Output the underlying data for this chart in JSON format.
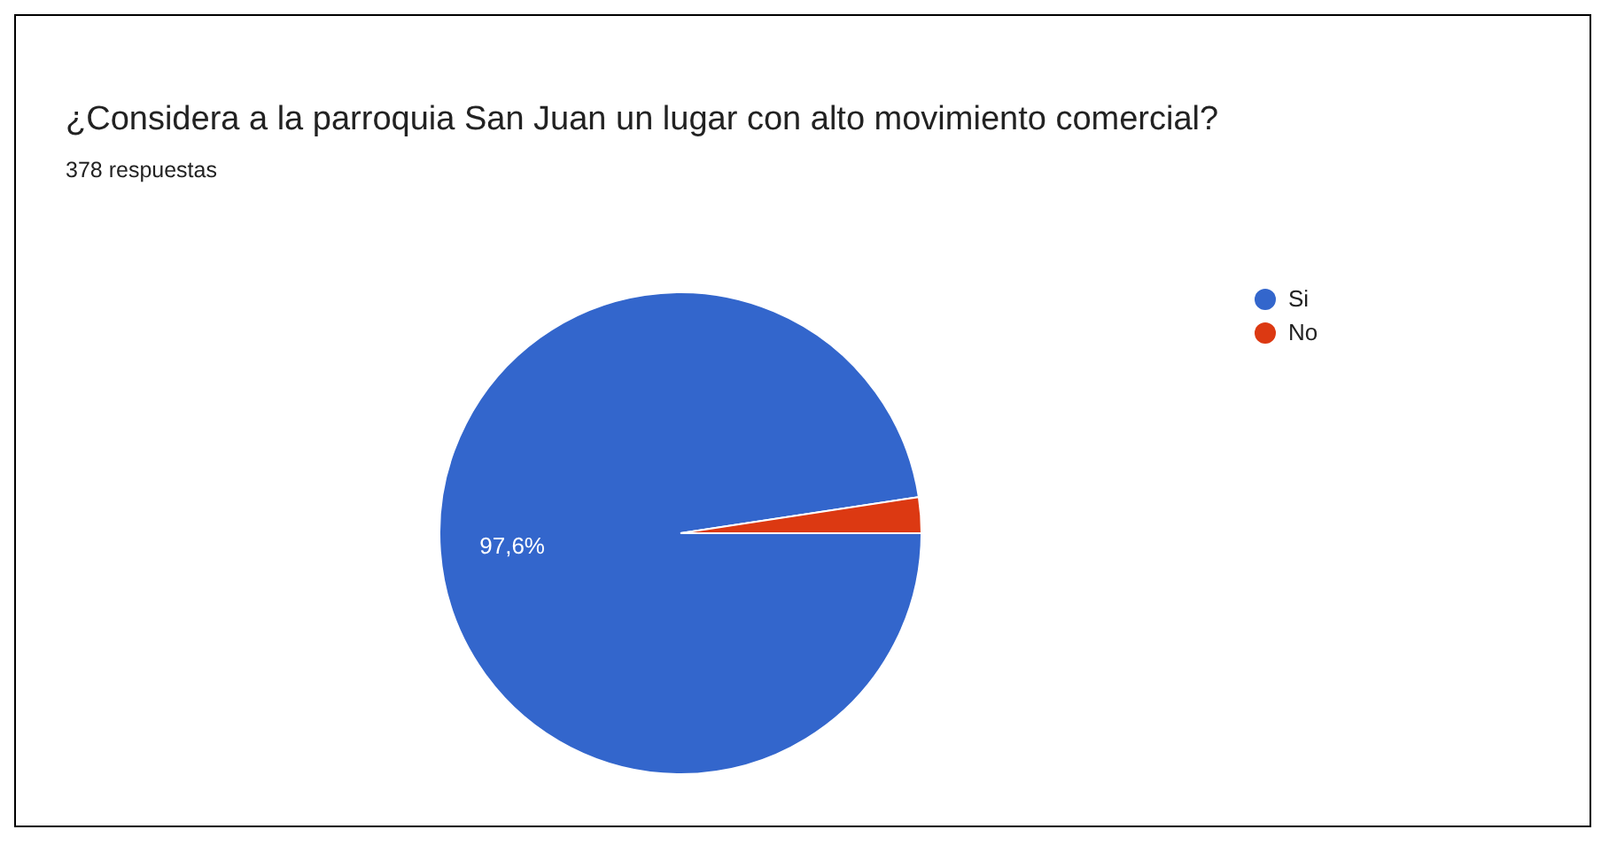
{
  "chart_data": {
    "type": "pie",
    "title": "¿Considera a la parroquia San Juan un lugar con alto movimiento comercial?",
    "subtitle": "378 respuestas",
    "categories": [
      "Si",
      "No"
    ],
    "values": [
      97.6,
      2.4
    ],
    "colors": [
      "#3366cc",
      "#dc3912"
    ],
    "value_labels": [
      "97,6%",
      null
    ],
    "legend": "top right"
  }
}
